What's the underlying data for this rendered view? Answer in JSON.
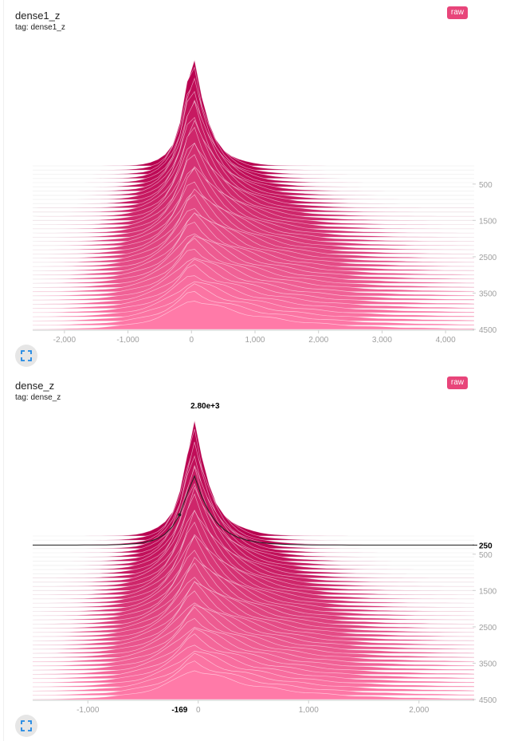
{
  "panels": [
    {
      "title": "dense1_z",
      "tag": "tag: dense1_z",
      "raw_label": "raw",
      "expand_icon": "expand-icon"
    },
    {
      "title": "dense_z",
      "tag": "tag: dense_z",
      "raw_label": "raw",
      "expand_icon": "expand-icon"
    }
  ],
  "chart_data": [
    {
      "type": "area",
      "subtype": "histogram-offset",
      "x_ticks": [
        "-2,000",
        "-1,000",
        "0",
        "1,000",
        "2,000",
        "3,000",
        "4,000"
      ],
      "x_tick_values": [
        -2000,
        -1000,
        0,
        1000,
        2000,
        3000,
        4000
      ],
      "xlim": [
        -2500,
        4450
      ],
      "y_ticks": [
        "500",
        "1500",
        "2500",
        "3500",
        "4500"
      ],
      "y_tick_values": [
        500,
        1500,
        2500,
        3500,
        4500
      ],
      "steps": [
        0,
        4500
      ],
      "series_count": 40,
      "peak_center": 0,
      "colors": {
        "back": "#b8004f",
        "front": "#ff7aa8"
      }
    },
    {
      "type": "area",
      "subtype": "histogram-offset",
      "x_ticks": [
        "-1,000",
        "0",
        "1,000",
        "2,000"
      ],
      "x_tick_values": [
        -1000,
        0,
        1000,
        2000
      ],
      "xlim": [
        -1500,
        2500
      ],
      "y_ticks": [
        "500",
        "1500",
        "2500",
        "3500",
        "4500"
      ],
      "y_tick_values": [
        500,
        1500,
        2500,
        3500,
        4500
      ],
      "steps": [
        0,
        4500
      ],
      "series_count": 40,
      "peak_center": -50,
      "colors": {
        "back": "#b8004f",
        "front": "#ff7aa8"
      },
      "hover": {
        "x_label": "-169",
        "x_value": -169,
        "y_label": "250",
        "step": 250,
        "count_label": "2.80e+3"
      }
    }
  ]
}
